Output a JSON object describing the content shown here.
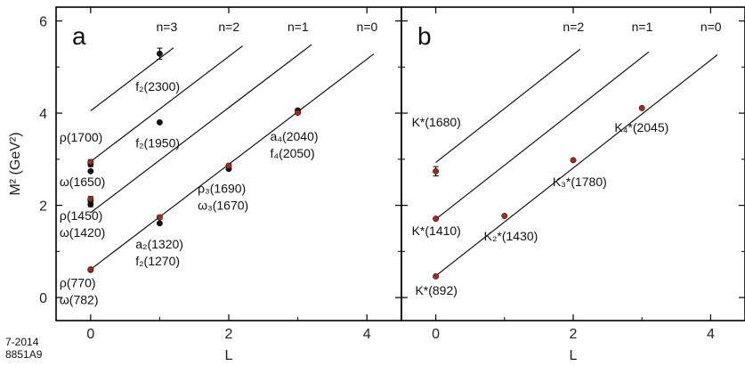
{
  "figure_id": {
    "line1": "7-2014",
    "line2": "8851A9"
  },
  "colors": {
    "black_point": "#141414",
    "red_point": "#a32a1f",
    "line": "#000000"
  },
  "chart_data": [
    {
      "panel": "a",
      "type": "scatter",
      "xlabel": "L",
      "ylabel": "M² (GeV²)",
      "xlim": [
        -0.5,
        4.5
      ],
      "ylim": [
        -0.5,
        6.3
      ],
      "xticks": [
        0,
        2,
        4
      ],
      "yticks": [
        0,
        2,
        4,
        6
      ],
      "grid": false,
      "trajectories": [
        {
          "label": "n=0",
          "intercept": 0.61,
          "slope": 1.14,
          "x_range": [
            0,
            4.1
          ]
        },
        {
          "label": "n=1",
          "intercept": 1.84,
          "slope": 1.14,
          "x_range": [
            0,
            3.2
          ]
        },
        {
          "label": "n=2",
          "intercept": 2.95,
          "slope": 1.14,
          "x_range": [
            0,
            2.2
          ]
        },
        {
          "label": "n=3",
          "intercept": 4.05,
          "slope": 1.14,
          "x_range": [
            0,
            1.2
          ]
        }
      ],
      "points": [
        {
          "x": 0,
          "y": 0.6,
          "err": 0,
          "color": "black"
        },
        {
          "x": 0,
          "y": 0.61,
          "err": 0,
          "color": "red"
        },
        {
          "x": 0,
          "y": 2.02,
          "err": 0.05,
          "color": "black"
        },
        {
          "x": 0,
          "y": 2.1,
          "err": 0.06,
          "color": "black"
        },
        {
          "x": 0,
          "y": 2.14,
          "err": 0.05,
          "color": "red"
        },
        {
          "x": 0,
          "y": 2.74,
          "err": 0,
          "color": "black"
        },
        {
          "x": 0,
          "y": 2.89,
          "err": 0.05,
          "color": "black"
        },
        {
          "x": 0,
          "y": 2.94,
          "err": 0.05,
          "color": "red"
        },
        {
          "x": 1,
          "y": 1.61,
          "err": 0,
          "color": "black"
        },
        {
          "x": 1,
          "y": 1.74,
          "err": 0.04,
          "color": "red"
        },
        {
          "x": 1,
          "y": 3.8,
          "err": 0,
          "color": "black"
        },
        {
          "x": 1,
          "y": 5.29,
          "err": 0.12,
          "color": "black"
        },
        {
          "x": 2,
          "y": 2.79,
          "err": 0,
          "color": "black"
        },
        {
          "x": 2,
          "y": 2.86,
          "err": 0.04,
          "color": "red"
        },
        {
          "x": 3,
          "y": 4.06,
          "err": 0.03,
          "color": "black"
        },
        {
          "x": 3,
          "y": 4.01,
          "err": 0.03,
          "color": "red"
        }
      ],
      "labels": [
        {
          "lines": [
            "ρ(770)",
            "ω(782)"
          ],
          "x": -0.45,
          "y": 0.22,
          "anchor": "start"
        },
        {
          "lines": [
            "ρ(1450)",
            "ω(1420)"
          ],
          "x": -0.45,
          "y": 1.68,
          "anchor": "start"
        },
        {
          "lines": [
            "ω(1650)"
          ],
          "x": -0.45,
          "y": 2.42,
          "anchor": "start"
        },
        {
          "lines": [
            "ρ(1700)"
          ],
          "x": -0.45,
          "y": 3.38,
          "anchor": "start"
        },
        {
          "lines": [
            "a₂(1320)",
            "f₂(1270)"
          ],
          "x": 0.65,
          "y": 1.06,
          "anchor": "start"
        },
        {
          "lines": [
            "ρ₃(1690)",
            "ω₃(1670)"
          ],
          "x": 1.55,
          "y": 2.27,
          "anchor": "start"
        },
        {
          "lines": [
            "a₄(2040)",
            "f₄(2050)"
          ],
          "x": 2.6,
          "y": 3.4,
          "anchor": "start"
        },
        {
          "lines": [
            "f₂(1950)"
          ],
          "x": 0.65,
          "y": 3.26,
          "anchor": "start"
        },
        {
          "lines": [
            "f₂(2300)"
          ],
          "x": 0.65,
          "y": 4.48,
          "anchor": "start"
        },
        {
          "lines": [
            "n=3"
          ],
          "x": 0.95,
          "y": 5.78,
          "anchor": "start"
        },
        {
          "lines": [
            "n=2"
          ],
          "x": 1.85,
          "y": 5.78,
          "anchor": "start"
        },
        {
          "lines": [
            "n=1"
          ],
          "x": 2.85,
          "y": 5.78,
          "anchor": "start"
        },
        {
          "lines": [
            "n=0"
          ],
          "x": 3.85,
          "y": 5.78,
          "anchor": "start"
        }
      ]
    },
    {
      "panel": "b",
      "type": "scatter",
      "xlabel": "L",
      "ylabel": "",
      "xlim": [
        -0.5,
        4.5
      ],
      "ylim": [
        -0.5,
        6.3
      ],
      "xticks": [
        0,
        2,
        4
      ],
      "yticks": [
        0,
        2,
        4,
        6
      ],
      "grid": false,
      "trajectories": [
        {
          "label": "n=0",
          "intercept": 0.47,
          "slope": 1.17,
          "x_range": [
            0,
            4.1
          ]
        },
        {
          "label": "n=1",
          "intercept": 1.7,
          "slope": 1.17,
          "x_range": [
            0,
            3.1
          ]
        },
        {
          "label": "n=2",
          "intercept": 2.93,
          "slope": 1.17,
          "x_range": [
            0,
            2.1
          ]
        }
      ],
      "points": [
        {
          "x": 0,
          "y": 0.46,
          "err": 0,
          "color": "red"
        },
        {
          "x": 0,
          "y": 1.71,
          "err": 0,
          "color": "red"
        },
        {
          "x": 0,
          "y": 2.74,
          "err": 0.1,
          "color": "red"
        },
        {
          "x": 1,
          "y": 1.77,
          "err": 0,
          "color": "red"
        },
        {
          "x": 2,
          "y": 2.98,
          "err": 0,
          "color": "red"
        },
        {
          "x": 3,
          "y": 4.11,
          "err": 0,
          "color": "red"
        }
      ],
      "labels": [
        {
          "lines": [
            "K*(892)"
          ],
          "x": -0.3,
          "y": 0.06,
          "anchor": "start"
        },
        {
          "lines": [
            "K*(1410)"
          ],
          "x": -0.35,
          "y": 1.35,
          "anchor": "start"
        },
        {
          "lines": [
            "K*(1680)"
          ],
          "x": -0.35,
          "y": 3.71,
          "anchor": "start"
        },
        {
          "lines": [
            "K₂*(1430)"
          ],
          "x": 0.7,
          "y": 1.24,
          "anchor": "start"
        },
        {
          "lines": [
            "K₃*(1780)"
          ],
          "x": 1.7,
          "y": 2.42,
          "anchor": "start"
        },
        {
          "lines": [
            "K₄*(2045)"
          ],
          "x": 2.6,
          "y": 3.6,
          "anchor": "start"
        },
        {
          "lines": [
            "n=2"
          ],
          "x": 1.85,
          "y": 5.78,
          "anchor": "start"
        },
        {
          "lines": [
            "n=1"
          ],
          "x": 2.85,
          "y": 5.78,
          "anchor": "start"
        },
        {
          "lines": [
            "n=0"
          ],
          "x": 3.85,
          "y": 5.78,
          "anchor": "start"
        }
      ]
    }
  ]
}
